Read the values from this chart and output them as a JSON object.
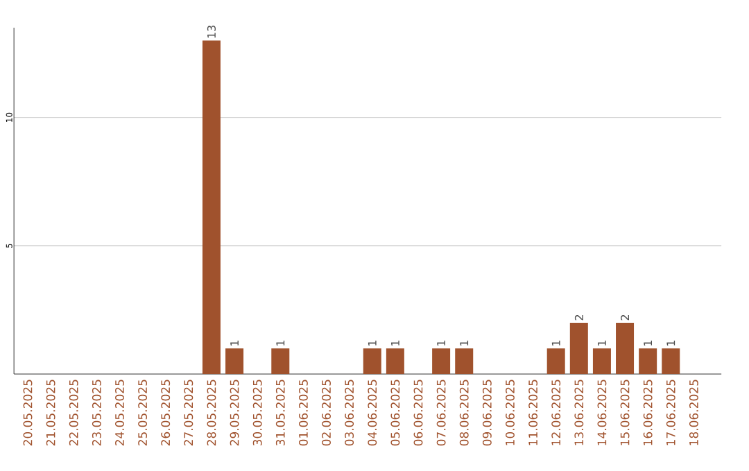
{
  "chart_data": {
    "type": "bar",
    "categories": [
      "20.05.2025",
      "21.05.2025",
      "22.05.2025",
      "23.05.2025",
      "24.05.2025",
      "25.05.2025",
      "26.05.2025",
      "27.05.2025",
      "28.05.2025",
      "29.05.2025",
      "30.05.2025",
      "31.05.2025",
      "01.06.2025",
      "02.06.2025",
      "03.06.2025",
      "04.06.2025",
      "05.06.2025",
      "06.06.2025",
      "07.06.2025",
      "08.06.2025",
      "09.06.2025",
      "10.06.2025",
      "11.06.2025",
      "12.06.2025",
      "13.06.2025",
      "14.06.2025",
      "15.06.2025",
      "16.06.2025",
      "17.06.2025",
      "18.06.2025"
    ],
    "values": [
      0,
      0,
      0,
      0,
      0,
      0,
      0,
      0,
      13,
      1,
      0,
      1,
      0,
      0,
      0,
      1,
      1,
      0,
      1,
      1,
      0,
      0,
      0,
      1,
      2,
      1,
      2,
      1,
      1,
      0
    ],
    "value_labels": [
      null,
      null,
      null,
      null,
      null,
      null,
      null,
      null,
      "13",
      "1",
      null,
      "1",
      null,
      null,
      null,
      "1",
      "1",
      null,
      "1",
      "1",
      null,
      null,
      null,
      "1",
      "2",
      "1",
      "2",
      "1",
      "1",
      null
    ],
    "color": "#a0522d",
    "ylim": [
      0,
      13.5
    ],
    "yticks": [
      5,
      10
    ],
    "grid": "y"
  }
}
